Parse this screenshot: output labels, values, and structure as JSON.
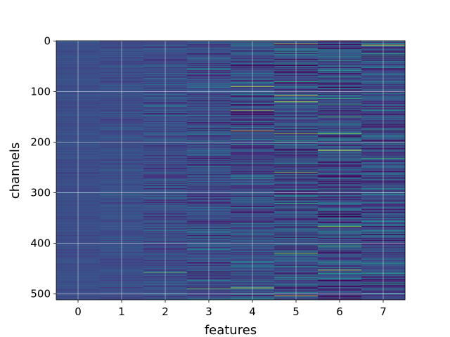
{
  "chart_data": {
    "type": "heatmap",
    "title": "",
    "xlabel": "features",
    "ylabel": "channels",
    "x_categories": [
      "0",
      "1",
      "2",
      "3",
      "4",
      "5",
      "6",
      "7"
    ],
    "y_ticks": [
      0,
      100,
      200,
      300,
      400,
      500
    ],
    "y_range": [
      0,
      511
    ],
    "num_channels": 512,
    "colormap": "viridis",
    "grid": true,
    "colors": {
      "background": "#3b528b",
      "grid": "#ffffff",
      "highlight": "#fde725",
      "teal": "#21918c"
    },
    "column_spread": [
      0.06,
      0.1,
      0.16,
      0.22,
      0.26,
      0.32,
      0.34,
      0.3
    ],
    "highlights": [
      {
        "feature": 0,
        "channel": 0,
        "value": 0.5
      },
      {
        "feature": 4,
        "channel": 90,
        "value": 0.98
      },
      {
        "feature": 4,
        "channel": 137,
        "value": 0.9
      },
      {
        "feature": 4,
        "channel": 178,
        "value": 1.0
      },
      {
        "feature": 4,
        "channel": 488,
        "value": 0.95
      },
      {
        "feature": 5,
        "channel": 6,
        "value": 0.95
      },
      {
        "feature": 5,
        "channel": 108,
        "value": 1.0
      },
      {
        "feature": 5,
        "channel": 120,
        "value": 0.95
      },
      {
        "feature": 5,
        "channel": 142,
        "value": 0.05
      },
      {
        "feature": 5,
        "channel": 183,
        "value": 0.9
      },
      {
        "feature": 5,
        "channel": 260,
        "value": 0.85
      },
      {
        "feature": 5,
        "channel": 420,
        "value": 0.9
      },
      {
        "feature": 5,
        "channel": 503,
        "value": 0.95
      },
      {
        "feature": 6,
        "channel": 150,
        "value": 0.8
      },
      {
        "feature": 6,
        "channel": 183,
        "value": 0.9
      },
      {
        "feature": 6,
        "channel": 216,
        "value": 1.0
      },
      {
        "feature": 6,
        "channel": 268,
        "value": 0.05
      },
      {
        "feature": 6,
        "channel": 367,
        "value": 0.9
      },
      {
        "feature": 6,
        "channel": 453,
        "value": 0.95
      },
      {
        "feature": 7,
        "channel": 8,
        "value": 1.0
      },
      {
        "feature": 7,
        "channel": 232,
        "value": 0.75
      },
      {
        "feature": 7,
        "channel": 460,
        "value": 0.7
      },
      {
        "feature": 2,
        "channel": 458,
        "value": 0.8
      },
      {
        "feature": 3,
        "channel": 490,
        "value": 0.85
      }
    ]
  }
}
